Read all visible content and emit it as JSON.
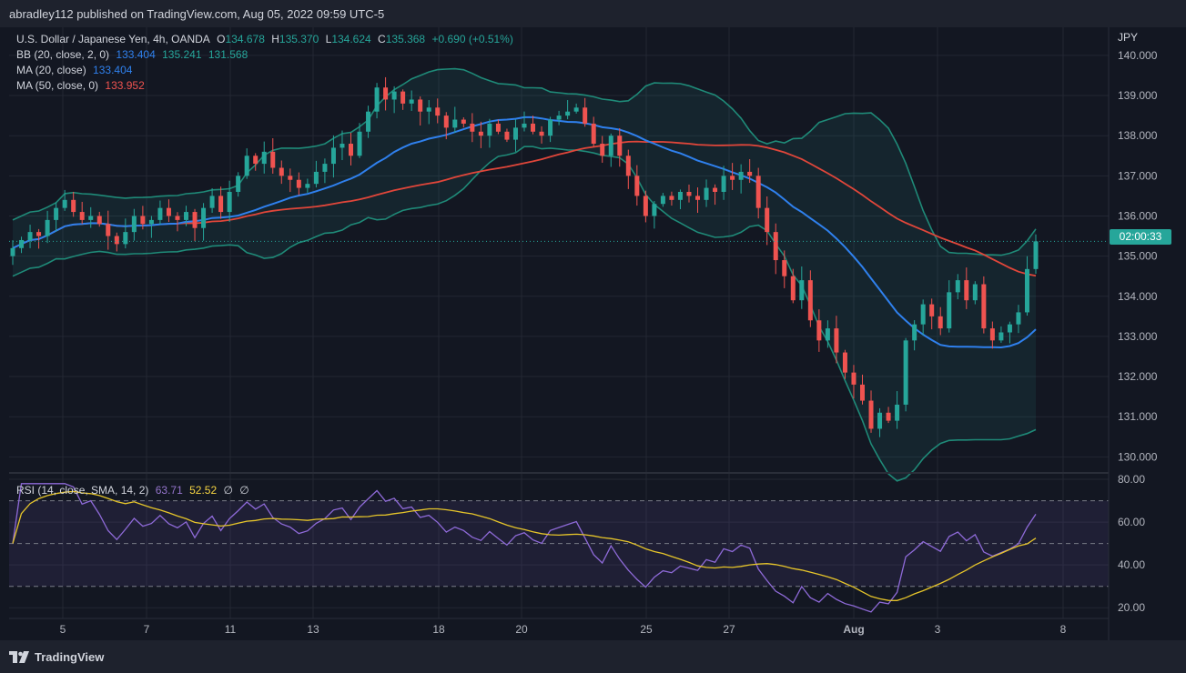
{
  "header": {
    "published_by": "abradley112 published on TradingView.com, Aug 05, 2022 09:59 UTC-5"
  },
  "footer": {
    "brand": "TradingView"
  },
  "legend": {
    "symbol": "U.S. Dollar / Japanese Yen, 4h, OANDA",
    "o_label": "O",
    "o": "134.678",
    "h_label": "H",
    "h": "135.370",
    "l_label": "L",
    "l": "134.624",
    "c_label": "C",
    "c": "135.368",
    "change": "+0.690 (+0.51%)",
    "bb_label": "BB (20, close, 2, 0)",
    "bb_basis": "133.404",
    "bb_upper": "135.241",
    "bb_lower": "131.568",
    "ma20_label": "MA (20, close)",
    "ma20_value": "133.404",
    "ma50_label": "MA (50, close, 0)",
    "ma50_value": "133.952"
  },
  "rsi_legend": {
    "label": "RSI (14, close, SMA, 14, 2)",
    "rsi": "63.71",
    "sma": "52.52",
    "na1": "∅",
    "na2": "∅"
  },
  "price_axis": {
    "currency": "JPY",
    "ticks": [
      "140.000",
      "139.000",
      "138.000",
      "137.000",
      "136.000",
      "135.000",
      "134.000",
      "133.000",
      "132.000",
      "131.000",
      "130.000"
    ],
    "countdown": "02:00:33"
  },
  "rsi_axis": {
    "ticks": [
      "80.00",
      "60.00",
      "40.00",
      "20.00"
    ]
  },
  "time_axis": {
    "ticks": [
      "5",
      "7",
      "11",
      "13",
      "18",
      "20",
      "25",
      "27",
      "Aug",
      "3",
      "8"
    ]
  },
  "colors": {
    "up": "#26a69a",
    "down": "#ef5350",
    "bb": "#1f8a78",
    "ma20": "#2f80ed",
    "ma50": "#e0463a",
    "rsi": "#8e6ad8",
    "rsi_sma": "#e6c52a"
  },
  "chart_data": [
    {
      "type": "candlestick",
      "interval": "4h",
      "ylim": [
        129.6,
        140.7
      ],
      "last_close": 135.368,
      "closes": [
        135.2,
        135.4,
        135.6,
        135.5,
        135.9,
        136.2,
        136.4,
        136.1,
        135.9,
        136.0,
        135.8,
        135.5,
        135.3,
        135.6,
        136.0,
        135.8,
        135.9,
        136.2,
        136.0,
        135.9,
        136.1,
        135.7,
        136.2,
        136.5,
        136.1,
        136.6,
        137.0,
        137.5,
        137.3,
        137.6,
        137.2,
        137.0,
        136.9,
        136.7,
        136.8,
        137.1,
        137.3,
        137.7,
        137.8,
        137.5,
        138.1,
        138.6,
        139.2,
        138.9,
        139.1,
        138.8,
        138.9,
        138.6,
        138.7,
        138.5,
        138.2,
        138.4,
        138.3,
        138.1,
        138.0,
        138.3,
        138.1,
        137.9,
        138.2,
        138.3,
        138.1,
        138.0,
        138.4,
        138.5,
        138.6,
        138.7,
        138.3,
        137.8,
        137.5,
        138.0,
        137.5,
        137.0,
        136.5,
        136.0,
        136.3,
        136.5,
        136.4,
        136.6,
        136.5,
        136.4,
        136.7,
        136.6,
        137.0,
        136.9,
        137.1,
        137.0,
        136.2,
        135.6,
        134.9,
        134.5,
        133.9,
        134.4,
        133.4,
        132.9,
        133.2,
        132.6,
        132.1,
        131.8,
        131.4,
        130.7,
        131.1,
        130.9,
        131.3,
        132.9,
        133.3,
        133.8,
        133.5,
        133.2,
        134.1,
        134.4,
        133.9,
        134.3,
        133.2,
        132.9,
        133.1,
        133.3,
        133.6,
        134.678,
        135.368
      ],
      "bollinger": {
        "period": 20,
        "stddev": 2,
        "basis": 133.404,
        "upper": 135.241,
        "lower": 131.568
      },
      "ma20": 133.404,
      "ma50": 133.952
    },
    {
      "type": "line",
      "name": "RSI (14, close, SMA, 14, 2)",
      "ylim": [
        15,
        83
      ],
      "bands": [
        30,
        50,
        70
      ],
      "rsi_last": 63.71,
      "sma_last": 52.52
    }
  ]
}
